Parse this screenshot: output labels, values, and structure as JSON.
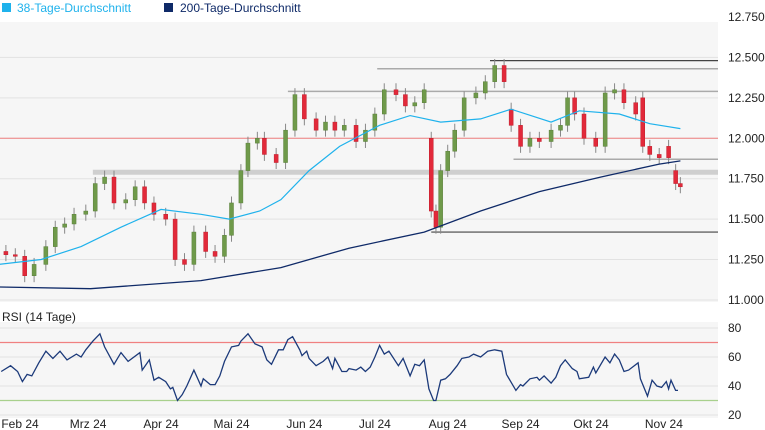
{
  "legend": [
    {
      "label": "38-Tage-Durchschnitt",
      "color": "#1fb2ec"
    },
    {
      "label": "200-Tage-Durchschnitt",
      "color": "#0f2a68"
    }
  ],
  "chart_data": [
    {
      "type": "candlestick",
      "x_unit": "calendar days since 1 Feb 2024",
      "xlim": [
        -9,
        296
      ],
      "ylim": [
        11.0,
        12.75
      ],
      "y_ticks": [
        "12.750",
        "12.500",
        "12.250",
        "12.000",
        "11.750",
        "11.500",
        "11.250",
        "11.000"
      ],
      "y_tick_values": [
        12.75,
        12.5,
        12.25,
        12.0,
        11.75,
        11.5,
        11.25,
        11.0
      ],
      "grid": true,
      "colors": {
        "up": "#6f9a4a",
        "down": "#e2293a",
        "ma38": "#1fb2ec",
        "ma200": "#0f2a68"
      },
      "candles_open_close": [
        [
          -6,
          11.3,
          11.28
        ],
        [
          -2,
          11.28,
          11.27
        ],
        [
          2,
          11.27,
          11.15
        ],
        [
          6,
          11.15,
          11.22
        ],
        [
          11,
          11.22,
          11.33
        ],
        [
          15,
          11.33,
          11.45
        ],
        [
          19,
          11.45,
          11.47
        ],
        [
          23,
          11.47,
          11.53
        ],
        [
          28,
          11.53,
          11.55
        ],
        [
          32,
          11.55,
          11.72
        ],
        [
          36,
          11.72,
          11.76
        ],
        [
          40,
          11.76,
          11.6
        ],
        [
          45,
          11.6,
          11.62
        ],
        [
          49,
          11.62,
          11.7
        ],
        [
          53,
          11.7,
          11.6
        ],
        [
          57,
          11.6,
          11.53
        ],
        [
          62,
          11.53,
          11.5
        ],
        [
          66,
          11.5,
          11.25
        ],
        [
          70,
          11.25,
          11.22
        ],
        [
          74,
          11.22,
          11.42
        ],
        [
          79,
          11.42,
          11.3
        ],
        [
          83,
          11.3,
          11.27
        ],
        [
          87,
          11.27,
          11.4
        ],
        [
          90,
          11.4,
          11.6
        ],
        [
          94,
          11.6,
          11.8
        ],
        [
          97,
          11.8,
          11.97
        ],
        [
          101,
          11.97,
          12.0
        ],
        [
          104,
          12.0,
          11.9
        ],
        [
          109,
          11.9,
          11.85
        ],
        [
          113,
          11.85,
          12.05
        ],
        [
          117,
          12.05,
          12.27
        ],
        [
          121,
          12.27,
          12.12
        ],
        [
          126,
          12.12,
          12.05
        ],
        [
          130,
          12.05,
          12.1
        ],
        [
          134,
          12.1,
          12.05
        ],
        [
          138,
          12.05,
          12.08
        ],
        [
          143,
          12.08,
          11.98
        ],
        [
          147,
          11.98,
          12.05
        ],
        [
          151,
          12.05,
          12.15
        ],
        [
          155,
          12.15,
          12.3
        ],
        [
          160,
          12.3,
          12.27
        ],
        [
          164,
          12.27,
          12.2
        ],
        [
          168,
          12.2,
          12.22
        ],
        [
          172,
          12.22,
          12.3
        ],
        [
          175,
          12.0,
          11.55
        ],
        [
          177,
          11.55,
          11.45
        ],
        [
          179,
          11.45,
          11.8
        ],
        [
          182,
          11.8,
          11.92
        ],
        [
          185,
          11.92,
          12.05
        ],
        [
          189,
          12.05,
          12.25
        ],
        [
          194,
          12.25,
          12.28
        ],
        [
          198,
          12.28,
          12.35
        ],
        [
          202,
          12.35,
          12.45
        ],
        [
          206,
          12.45,
          12.35
        ],
        [
          209,
          12.18,
          12.08
        ],
        [
          213,
          12.08,
          11.95
        ],
        [
          217,
          11.95,
          12.0
        ],
        [
          221,
          12.0,
          11.98
        ],
        [
          226,
          11.98,
          12.05
        ],
        [
          230,
          12.05,
          12.08
        ],
        [
          233,
          12.08,
          12.25
        ],
        [
          236,
          12.25,
          12.15
        ],
        [
          240,
          12.15,
          12.0
        ],
        [
          245,
          12.0,
          11.95
        ],
        [
          249,
          11.95,
          12.28
        ],
        [
          253,
          12.28,
          12.3
        ],
        [
          257,
          12.3,
          12.22
        ],
        [
          262,
          12.22,
          12.15
        ],
        [
          265,
          12.25,
          11.95
        ],
        [
          268,
          11.95,
          11.9
        ],
        [
          272,
          11.9,
          11.88
        ],
        [
          276,
          11.95,
          11.88
        ],
        [
          279,
          11.8,
          11.72
        ],
        [
          281,
          11.72,
          11.7
        ]
      ],
      "ma38": [
        [
          -9,
          11.22
        ],
        [
          9,
          11.25
        ],
        [
          26,
          11.33
        ],
        [
          43,
          11.45
        ],
        [
          60,
          11.56
        ],
        [
          77,
          11.53
        ],
        [
          89,
          11.5
        ],
        [
          102,
          11.55
        ],
        [
          111,
          11.62
        ],
        [
          123,
          11.8
        ],
        [
          136,
          11.95
        ],
        [
          153,
          12.08
        ],
        [
          166,
          12.14
        ],
        [
          179,
          12.1
        ],
        [
          196,
          12.12
        ],
        [
          209,
          12.18
        ],
        [
          226,
          12.1
        ],
        [
          238,
          12.17
        ],
        [
          255,
          12.15
        ],
        [
          268,
          12.09
        ],
        [
          281,
          12.06
        ]
      ],
      "ma200": [
        [
          -9,
          11.08
        ],
        [
          30,
          11.07
        ],
        [
          77,
          11.12
        ],
        [
          111,
          11.2
        ],
        [
          140,
          11.32
        ],
        [
          172,
          11.42
        ],
        [
          196,
          11.55
        ],
        [
          221,
          11.67
        ],
        [
          247,
          11.76
        ],
        [
          272,
          11.84
        ],
        [
          281,
          11.86
        ]
      ],
      "levels": [
        {
          "value": 12.48,
          "from": 200,
          "style": "dark"
        },
        {
          "value": 12.43,
          "from": 152,
          "style": "gray"
        },
        {
          "value": 12.29,
          "from": 114,
          "style": "gray"
        },
        {
          "value": 12.0,
          "from": -9,
          "style": "red"
        },
        {
          "value": 11.87,
          "from": 210,
          "style": "gray"
        },
        {
          "value": 11.79,
          "from": 31,
          "style": "band"
        },
        {
          "value": 11.42,
          "from": 175,
          "style": "dark"
        }
      ]
    },
    {
      "type": "line",
      "title": "RSI (14 Tage)",
      "ylim": [
        20,
        80
      ],
      "y_ticks": [
        "80",
        "60",
        "40",
        "20"
      ],
      "y_tick_values": [
        80,
        60,
        40,
        20
      ],
      "thresholds": [
        {
          "value": 70,
          "color": "#f08080"
        },
        {
          "value": 30,
          "color": "#a8d08d"
        }
      ],
      "color": "#1c3a7a",
      "x_ticks": [
        "Feb 24",
        "Mrz 24",
        "Apr 24",
        "Mai 24",
        "Jun 24",
        "Jul 24",
        "Aug 24",
        "Sep 24",
        "Okt 24",
        "Nov 24"
      ],
      "x_tick_values": [
        0,
        29,
        60,
        90,
        121,
        151,
        182,
        213,
        243,
        274
      ],
      "values": [
        [
          -8,
          50
        ],
        [
          -4,
          54
        ],
        [
          -1,
          50
        ],
        [
          1,
          43
        ],
        [
          3,
          48
        ],
        [
          5,
          47
        ],
        [
          8,
          56
        ],
        [
          11,
          64
        ],
        [
          14,
          59
        ],
        [
          17,
          64
        ],
        [
          20,
          58
        ],
        [
          24,
          62
        ],
        [
          26,
          60
        ],
        [
          28,
          65
        ],
        [
          31,
          71
        ],
        [
          34,
          76
        ],
        [
          36,
          67
        ],
        [
          40,
          55
        ],
        [
          43,
          63
        ],
        [
          46,
          57
        ],
        [
          51,
          63
        ],
        [
          52,
          51
        ],
        [
          55,
          58
        ],
        [
          57,
          44
        ],
        [
          59,
          46
        ],
        [
          62,
          43
        ],
        [
          64,
          38
        ],
        [
          65,
          39
        ],
        [
          67,
          30
        ],
        [
          69,
          34
        ],
        [
          71,
          40
        ],
        [
          74,
          51
        ],
        [
          77,
          40
        ],
        [
          78,
          45
        ],
        [
          81,
          41
        ],
        [
          83,
          41
        ],
        [
          85,
          47
        ],
        [
          87,
          57
        ],
        [
          90,
          67
        ],
        [
          93,
          68
        ],
        [
          94,
          71
        ],
        [
          97,
          76
        ],
        [
          100,
          69
        ],
        [
          103,
          67
        ],
        [
          105,
          58
        ],
        [
          107,
          55
        ],
        [
          110,
          65
        ],
        [
          112,
          65
        ],
        [
          114,
          72
        ],
        [
          116,
          74
        ],
        [
          119,
          65
        ],
        [
          120,
          61
        ],
        [
          122,
          64
        ],
        [
          123,
          59
        ],
        [
          126,
          54
        ],
        [
          129,
          57
        ],
        [
          131,
          60
        ],
        [
          133,
          52
        ],
        [
          134,
          59
        ],
        [
          137,
          50
        ],
        [
          139,
          50
        ],
        [
          140,
          52
        ],
        [
          143,
          51
        ],
        [
          145,
          53
        ],
        [
          147,
          50
        ],
        [
          149,
          53
        ],
        [
          151,
          60
        ],
        [
          153,
          68
        ],
        [
          155,
          62
        ],
        [
          157,
          64
        ],
        [
          161,
          54
        ],
        [
          163,
          59
        ],
        [
          166,
          47
        ],
        [
          168,
          55
        ],
        [
          170,
          54
        ],
        [
          172,
          58
        ],
        [
          174,
          38
        ],
        [
          176,
          30
        ],
        [
          177,
          30
        ],
        [
          179,
          44
        ],
        [
          181,
          45
        ],
        [
          183,
          48
        ],
        [
          186,
          54
        ],
        [
          188,
          59
        ],
        [
          191,
          60
        ],
        [
          193,
          62
        ],
        [
          196,
          60
        ],
        [
          199,
          64
        ],
        [
          202,
          65
        ],
        [
          205,
          64
        ],
        [
          207,
          48
        ],
        [
          211,
          37
        ],
        [
          213,
          41
        ],
        [
          214,
          40
        ],
        [
          217,
          45
        ],
        [
          220,
          46
        ],
        [
          221,
          44
        ],
        [
          223,
          47
        ],
        [
          226,
          42
        ],
        [
          228,
          46
        ],
        [
          230,
          54
        ],
        [
          232,
          58
        ],
        [
          235,
          52
        ],
        [
          237,
          50
        ],
        [
          238,
          45
        ],
        [
          242,
          46
        ],
        [
          244,
          53
        ],
        [
          245,
          49
        ],
        [
          249,
          60
        ],
        [
          251,
          56
        ],
        [
          253,
          62
        ],
        [
          255,
          58
        ],
        [
          257,
          50
        ],
        [
          259,
          51
        ],
        [
          263,
          56
        ],
        [
          264,
          45
        ],
        [
          267,
          33
        ],
        [
          269,
          44
        ],
        [
          271,
          40
        ],
        [
          273,
          39
        ],
        [
          275,
          43
        ],
        [
          276,
          38
        ],
        [
          277,
          44
        ],
        [
          279,
          37
        ],
        [
          280,
          37
        ]
      ]
    }
  ]
}
